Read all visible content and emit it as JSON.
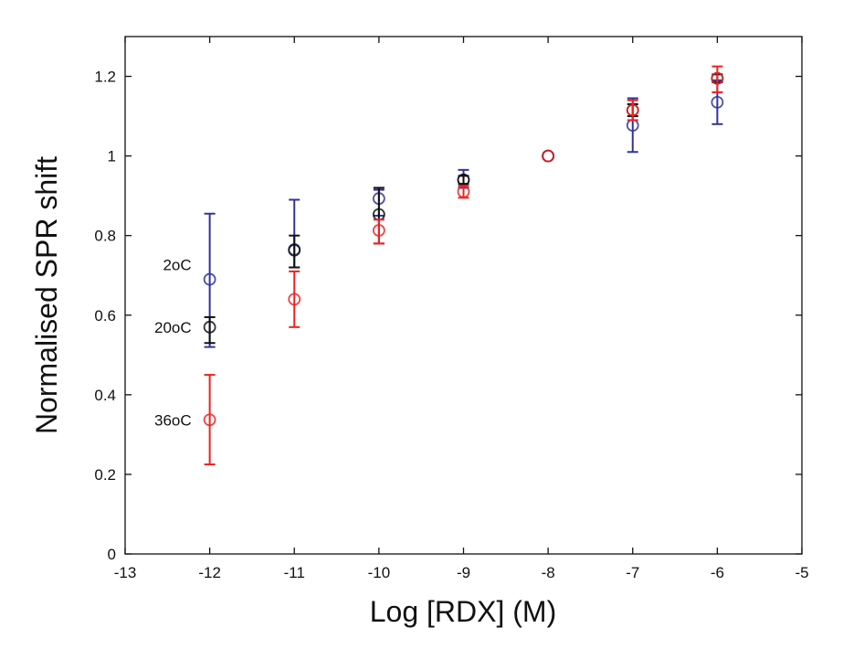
{
  "chart_data": {
    "type": "scatter",
    "xlabel": "Log [RDX] (M)",
    "ylabel": "Normalised SPR shift",
    "xlim": [
      -13,
      -5
    ],
    "ylim": [
      0,
      1.3
    ],
    "xticks": [
      "-13",
      "-12",
      "-11",
      "-10",
      "-9",
      "-8",
      "-7",
      "-6",
      "-5"
    ],
    "yticks": [
      "0",
      "0.2",
      "0.4",
      "0.6",
      "0.8",
      "1",
      "1.2"
    ],
    "grid": false,
    "x": [
      -12,
      -11,
      -10,
      -9,
      -8,
      -7,
      -6
    ],
    "series": [
      {
        "name": "2oC",
        "color": "#33339a",
        "y": [
          0.69,
          0.765,
          0.893,
          0.94,
          1.0,
          1.077,
          1.135
        ],
        "err_low": [
          0.52,
          0.72,
          0.85,
          0.92,
          1.0,
          1.01,
          1.08
        ],
        "err_high": [
          0.855,
          0.89,
          0.915,
          0.965,
          1.0,
          1.145,
          1.19
        ]
      },
      {
        "name": "20oC",
        "color": "#111111",
        "y": [
          0.57,
          0.763,
          0.853,
          0.94,
          1.0,
          1.115,
          1.195
        ],
        "err_low": [
          0.53,
          0.72,
          0.78,
          0.93,
          1.0,
          1.1,
          1.185
        ],
        "err_high": [
          0.595,
          0.8,
          0.92,
          0.95,
          1.0,
          1.13,
          1.205
        ]
      },
      {
        "name": "36oC",
        "color": "#ee2222",
        "y": [
          0.337,
          0.64,
          0.813,
          0.91,
          1.0,
          1.115,
          1.195
        ],
        "err_low": [
          0.225,
          0.57,
          0.78,
          0.895,
          1.0,
          1.09,
          1.16
        ],
        "err_high": [
          0.45,
          0.71,
          0.84,
          0.925,
          1.0,
          1.14,
          1.225
        ]
      }
    ]
  }
}
